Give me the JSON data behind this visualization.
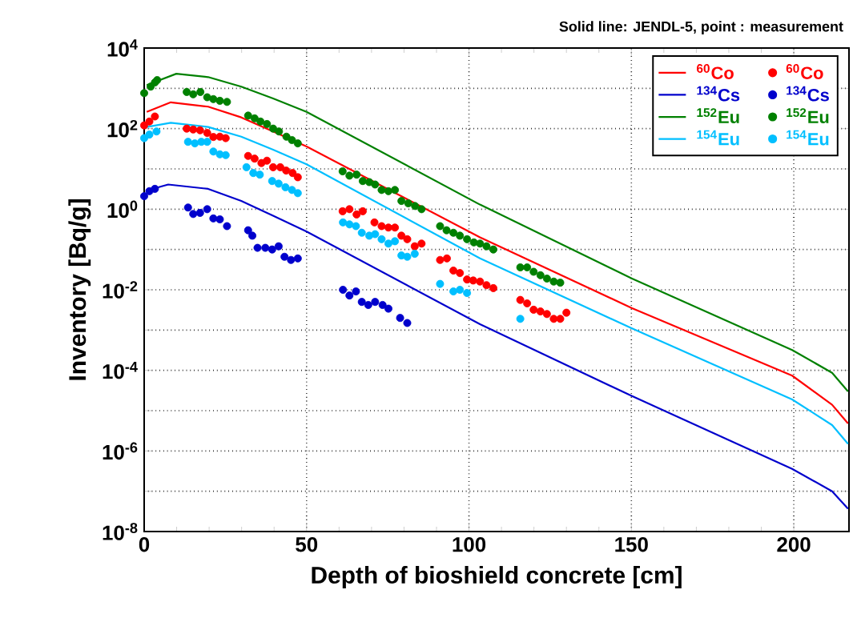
{
  "chart_data": {
    "type": "line",
    "title": "Solid line: JENDL-5, point : measurement",
    "xlabel": "Depth of bioshield concrete [cm]",
    "ylabel": "Inventory [Bq/g]",
    "log": "y",
    "grid": true,
    "legend": "top right",
    "xlim": [
      0,
      217
    ],
    "ylim": [
      1e-08,
      10000.0
    ],
    "xticks": [
      0,
      50,
      100,
      150,
      200
    ],
    "yticks": [
      {
        "value": 1e-08,
        "label": "10$^{-8}$"
      },
      {
        "value": 1e-07,
        "label": null
      },
      {
        "value": 1e-06,
        "label": "10$^{-6}$"
      },
      {
        "value": 1e-05,
        "label": null
      },
      {
        "value": 0.0001,
        "label": "10$^{-4}$"
      },
      {
        "value": 0.001,
        "label": null
      },
      {
        "value": 0.01,
        "label": "10$^{-2}$"
      },
      {
        "value": 0.1,
        "label": null
      },
      {
        "value": 1,
        "label": "10$^{0}$"
      },
      {
        "value": 10,
        "label": null
      },
      {
        "value": 100,
        "label": "10$^{2}$"
      },
      {
        "value": 1000,
        "label": null
      },
      {
        "value": 10000,
        "label": "10$^{4}$"
      }
    ],
    "series": [
      {
        "name": "$^{60}$Co",
        "type": "line",
        "marker": "none",
        "color": "#ff0000",
        "x": [
          0.8,
          8.2,
          19.7,
          29.9,
          39.7,
          50,
          103.4,
          150.2,
          199.5,
          211.8,
          216.7
        ],
        "values": [
          260,
          450,
          350,
          190,
          85,
          36,
          0.2,
          0.0035,
          7.4e-05,
          1.4e-05,
          4.8e-06
        ]
      },
      {
        "name": "$^{60}$Co",
        "type": "scatter",
        "marker": "circle",
        "color": "#ff0000",
        "x": [
          0,
          1.6,
          3.3,
          13.1,
          15.1,
          17.2,
          19.4,
          21.3,
          23.3,
          25.1,
          32,
          34,
          36.1,
          37.8,
          39.7,
          41.9,
          43.7,
          45.7,
          47.3,
          61.1,
          63.2,
          65.4,
          67.3,
          70.9,
          73.1,
          75.2,
          77.2,
          79.2,
          81,
          83.3,
          85.4,
          91.1,
          93.2,
          95.2,
          97.2,
          99.4,
          101.3,
          103.4,
          105.4,
          107.5,
          115.8,
          117.9,
          119.9,
          122,
          124,
          126.1,
          128.1,
          130
        ],
        "values": [
          120,
          150,
          200,
          100,
          95,
          91,
          78,
          62,
          63,
          58,
          21,
          18,
          14,
          16,
          11,
          11,
          9.1,
          7.9,
          6.2,
          0.89,
          1.0,
          0.74,
          0.89,
          0.47,
          0.38,
          0.35,
          0.35,
          0.22,
          0.18,
          0.12,
          0.14,
          0.055,
          0.06,
          0.03,
          0.026,
          0.018,
          0.017,
          0.016,
          0.013,
          0.011,
          0.0056,
          0.0046,
          0.0032,
          0.0029,
          0.0025,
          0.0019,
          0.0019,
          0.0027
        ]
      },
      {
        "name": "$^{134}$Cs",
        "type": "line",
        "marker": "none",
        "color": "#0000cc",
        "x": [
          0.8,
          7.4,
          19.7,
          29.9,
          39.7,
          50,
          103.4,
          150.2,
          199.5,
          211.8,
          216.7
        ],
        "values": [
          2.9,
          4.1,
          3.2,
          1.6,
          0.69,
          0.28,
          0.0014,
          2.3e-05,
          3.6e-07,
          1e-07,
          3.7e-08
        ]
      },
      {
        "name": "$^{134}$Cs",
        "type": "scatter",
        "marker": "circle",
        "color": "#0000cc",
        "x": [
          0,
          1.6,
          3.3,
          13.5,
          15.1,
          17.2,
          19.4,
          21.3,
          23.3,
          25.5,
          32,
          33.3,
          34.9,
          37.3,
          39.4,
          41.4,
          43.2,
          45.2,
          47.3,
          61.2,
          63.2,
          65.2,
          67,
          69,
          71.1,
          73.4,
          75.2,
          78.8,
          81
        ],
        "values": [
          2.1,
          2.8,
          3.2,
          1.1,
          0.76,
          0.81,
          1.0,
          0.59,
          0.56,
          0.38,
          0.3,
          0.22,
          0.11,
          0.11,
          0.1,
          0.12,
          0.066,
          0.055,
          0.06,
          0.01,
          0.0072,
          0.0091,
          0.005,
          0.0042,
          0.005,
          0.0042,
          0.0034,
          0.002,
          0.0015
        ]
      },
      {
        "name": "$^{152}$Eu",
        "type": "line",
        "marker": "none",
        "color": "#008000",
        "x": [
          0.8,
          9.9,
          19.7,
          29.9,
          39.7,
          50,
          103.4,
          150.2,
          199.5,
          211.8,
          216.7
        ],
        "values": [
          1200,
          2300,
          1900,
          1100,
          560,
          260,
          1.3,
          0.019,
          0.00032,
          8.7e-05,
          3e-05
        ]
      },
      {
        "name": "$^{152}$Eu",
        "type": "scatter",
        "marker": "circle",
        "color": "#008000",
        "x": [
          0,
          2,
          3.3,
          4,
          13.1,
          15.1,
          17.3,
          19.4,
          21.3,
          23.3,
          25.5,
          32,
          34,
          35.8,
          37.8,
          39.7,
          41.5,
          43.8,
          45.5,
          47.3,
          61.1,
          63.2,
          65.4,
          67.3,
          69.3,
          71.1,
          73.1,
          75.2,
          77.2,
          79.2,
          81.3,
          83.4,
          85.4,
          91.1,
          93.1,
          95.2,
          97.2,
          99.4,
          101.5,
          103.4,
          105.4,
          107.5,
          115.8,
          117.9,
          119.9,
          122,
          124,
          126.1,
          128.1
        ],
        "values": [
          760,
          1100,
          1400,
          1600,
          810,
          710,
          810,
          600,
          540,
          490,
          460,
          210,
          180,
          150,
          130,
          100,
          85,
          63,
          52,
          43,
          8.7,
          6.8,
          7.2,
          5.0,
          4.7,
          4.1,
          3.0,
          2.8,
          3.0,
          1.6,
          1.4,
          1.2,
          1.0,
          0.38,
          0.3,
          0.26,
          0.22,
          0.18,
          0.15,
          0.14,
          0.12,
          0.1,
          0.036,
          0.036,
          0.028,
          0.023,
          0.019,
          0.016,
          0.015
        ]
      },
      {
        "name": "$^{154}$Eu",
        "type": "line",
        "marker": "none",
        "color": "#00bfff",
        "x": [
          0.8,
          8.2,
          19.7,
          29.9,
          39.7,
          50,
          103.4,
          150.2,
          199.5,
          211.8,
          216.7
        ],
        "values": [
          110,
          140,
          110,
          63,
          30,
          13,
          0.06,
          0.0011,
          1.9e-05,
          4.4e-06,
          1.5e-06
        ]
      },
      {
        "name": "$^{154}$Eu",
        "type": "scatter",
        "marker": "circle",
        "color": "#00bfff",
        "x": [
          0,
          1.6,
          3.8,
          13.5,
          15.6,
          17.6,
          19.4,
          21.3,
          23.3,
          25.1,
          31.5,
          33.6,
          35.6,
          39.4,
          41.4,
          43.5,
          45.5,
          47.3,
          61.2,
          63.2,
          65.2,
          67,
          69.3,
          71.1,
          73.1,
          75.2,
          77.2,
          79.2,
          81,
          83.3,
          91.1,
          95.2,
          97.2,
          99.4,
          115.8
        ],
        "values": [
          58,
          71,
          85,
          47,
          43,
          47,
          47,
          27,
          23,
          22,
          11,
          7.9,
          7.2,
          5.0,
          4.3,
          3.5,
          3.0,
          2.5,
          0.47,
          0.42,
          0.38,
          0.26,
          0.22,
          0.24,
          0.18,
          0.14,
          0.16,
          0.071,
          0.066,
          0.078,
          0.014,
          0.0091,
          0.01,
          0.0083,
          0.0019
        ]
      }
    ]
  }
}
